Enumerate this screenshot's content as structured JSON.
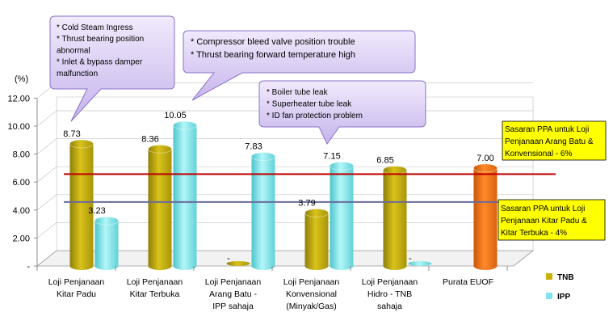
{
  "chart_data": {
    "type": "bar",
    "ylabel": "(%)",
    "ylim": [
      0,
      12
    ],
    "yticks": [
      "-",
      "2.00",
      "4.00",
      "6.00",
      "8.00",
      "10.00",
      "12.00"
    ],
    "categories": [
      [
        "Loji Penjanaan",
        "Kitar Padu"
      ],
      [
        "Loji Penjanaan",
        "Kitar Terbuka"
      ],
      [
        "Loji Penjanaan",
        "Arang Batu -",
        "IPP sahaja"
      ],
      [
        "Loji Penjanaan",
        "Konvensional",
        "(Minyak/Gas)"
      ],
      [
        "Loji Penjanaan",
        "Hidro - TNB",
        "sahaja"
      ],
      [
        "Purata  EUOF"
      ]
    ],
    "series": [
      {
        "name": "TNB",
        "color": "#c8b20e",
        "values": [
          8.73,
          8.36,
          0,
          3.79,
          6.85,
          null
        ],
        "labels": [
          "8.73",
          "8.36",
          "-",
          "3.79",
          "6.85",
          ""
        ]
      },
      {
        "name": "IPP",
        "color": "#7fe6ea",
        "values": [
          3.23,
          10.05,
          7.83,
          7.15,
          0,
          null
        ],
        "labels": [
          "3.23",
          "10.05",
          "7.83",
          "7.15",
          "-",
          ""
        ]
      }
    ],
    "average": {
      "value": 7.0,
      "label": "7.00",
      "color": "#f07418"
    },
    "reference_lines": [
      {
        "value": 6,
        "color": "#c00000",
        "text": [
          "Sasaran PPA untuk Loji",
          "Penjanaan Arang Batu &",
          "Konvensional -  6%"
        ]
      },
      {
        "value": 4,
        "color": "#6a6a9a",
        "text": [
          "Sasaran PPA untuk Loji",
          "Penjanaan Kitar Padu &",
          "Kitar Terbuka  -  4%"
        ]
      }
    ],
    "callouts": [
      {
        "lines": [
          "* Cold Steam Ingress",
          "* Thrust bearing position",
          "abnormal",
          "* Inlet & bypass damper",
          "malfunction"
        ]
      },
      {
        "lines": [
          "* Compressor bleed valve position trouble",
          "* Thrust bearing forward temperature high"
        ]
      },
      {
        "lines": [
          "* Boiler tube leak",
          "* Superheater tube leak",
          "* ID fan protection  problem"
        ]
      }
    ],
    "legend": {
      "placement": "right",
      "entries": [
        "TNB",
        "IPP"
      ]
    }
  }
}
